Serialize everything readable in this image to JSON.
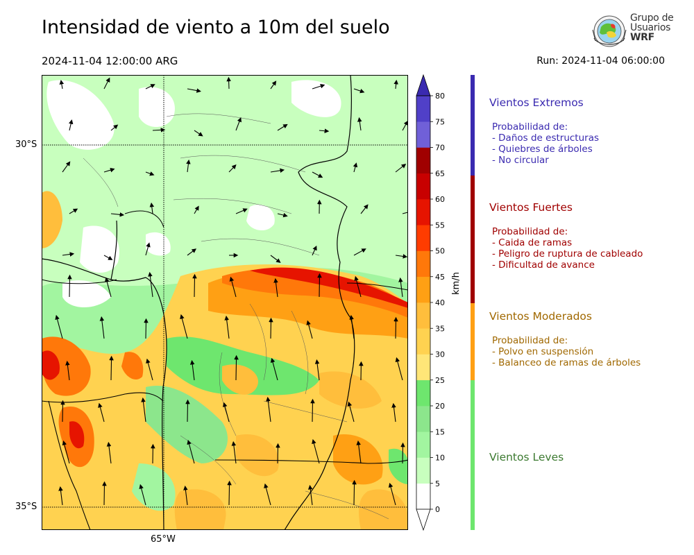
{
  "header": {
    "title": "Intensidad de viento a 10m del suelo",
    "valid_time": "2024-11-04 12:00:00 ARG",
    "run": "Run: 2024-11-04 06:00:00"
  },
  "logo": {
    "line1": "Grupo de",
    "line2": "Usuarios",
    "line3": "WRF"
  },
  "map": {
    "lat_labels": [
      "30°S",
      "35°S"
    ],
    "lon_labels": [
      "65°W"
    ]
  },
  "colorbar": {
    "unit": "km/h",
    "ticks": [
      0,
      5,
      10,
      15,
      20,
      25,
      30,
      35,
      40,
      45,
      50,
      55,
      60,
      65,
      70,
      75,
      80
    ],
    "colors": [
      "#ffffff",
      "#c8ffbe",
      "#a2f5a0",
      "#8ce68c",
      "#6ee66e",
      "#ffe678",
      "#ffd250",
      "#ffbe3c",
      "#ffa014",
      "#ff780a",
      "#ff3c00",
      "#e61400",
      "#c80000",
      "#a00000",
      "#7060d8",
      "#5040c8",
      "#3c32b4",
      "#3a2ab0"
    ]
  },
  "categories": [
    {
      "title": "Vientos Extremos",
      "desc_title": "Probabilidad de:",
      "items": [
        "- Daños de estructuras",
        "- Quiebres de árboles",
        "- No circular"
      ],
      "color": "#3a2ab0"
    },
    {
      "title": "Vientos Fuertes",
      "desc_title": "Probabilidad de:",
      "items": [
        "- Caida de ramas",
        "- Peligro de ruptura de cableado",
        "- Dificultad de avance"
      ],
      "color": "#a00000"
    },
    {
      "title": "Vientos Moderados",
      "desc_title": "Probabilidad de:",
      "items": [
        "- Polvo en suspensión",
        "- Balanceo de ramas de árboles"
      ],
      "color": "#a06800"
    },
    {
      "title": "Vientos Leves",
      "color": "#3c7a30"
    }
  ]
}
